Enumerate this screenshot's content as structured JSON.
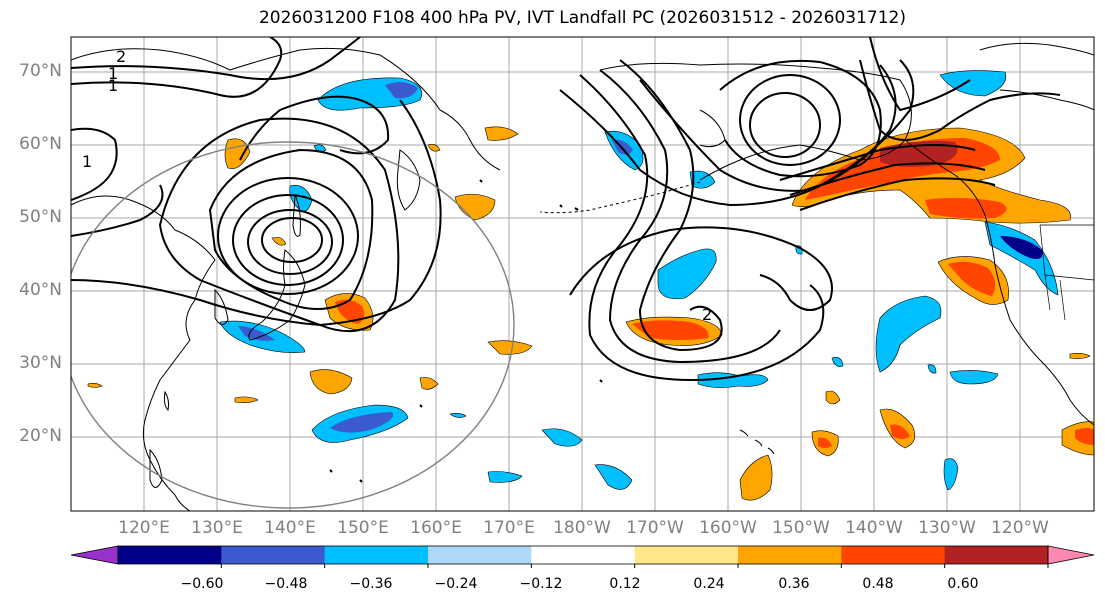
{
  "title": "2026031200 F108 400 hPa PV, IVT Landfall PC (2026031512 - 2026031712)",
  "map": {
    "projection": "PlateCarree",
    "lon_range": [
      110,
      250
    ],
    "lat_range": [
      10,
      75
    ],
    "gridlines": true,
    "lat_labels": [
      "70°N",
      "60°N",
      "50°N",
      "40°N",
      "30°N",
      "20°N"
    ],
    "lon_labels": [
      "120°E",
      "130°E",
      "140°E",
      "150°E",
      "160°E",
      "170°E",
      "180°W",
      "170°W",
      "160°W",
      "150°W",
      "140°W",
      "130°W",
      "120°W"
    ],
    "contour_labels": [
      "2",
      "1",
      "1",
      "1",
      "2"
    ],
    "circle_color": "#808080",
    "contour_color": "#000000"
  },
  "colorbar": {
    "ticks": [
      "−0.60",
      "−0.48",
      "−0.36",
      "−0.24",
      "−0.12",
      "0.12",
      "0.24",
      "0.36",
      "0.48",
      "0.60"
    ],
    "colors": [
      "#9932cc",
      "#00008b",
      "#3a5acd",
      "#00bfff",
      "#add8f7",
      "#ffffff",
      "#ffe78a",
      "#ffa500",
      "#ff4500",
      "#b22222",
      "#ff88b0"
    ],
    "extend": "both"
  }
}
